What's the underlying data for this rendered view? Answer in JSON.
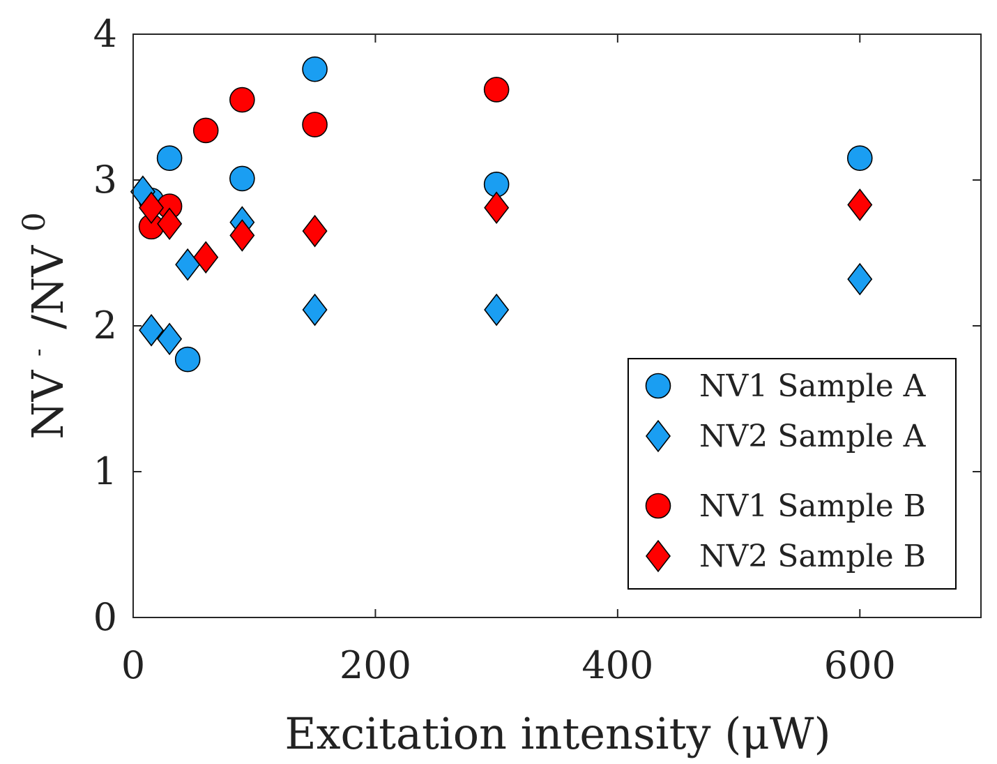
{
  "chart_data": {
    "type": "scatter",
    "title": "",
    "xlabel": "Excitation intensity (μW)",
    "ylabel": {
      "base": "NV",
      "superscript_1": "-",
      "separator": "/NV",
      "superscript_2": "0"
    },
    "xlim": [
      0,
      700
    ],
    "ylim": [
      0,
      4
    ],
    "xticks": [
      0,
      200,
      400,
      600
    ],
    "yticks": [
      0,
      1,
      2,
      3,
      4
    ],
    "xtick_labels": [
      "0",
      "200",
      "400",
      "600"
    ],
    "ytick_labels": [
      "0",
      "1",
      "2",
      "3",
      "4"
    ],
    "grid": false,
    "legend_position": "lower-right",
    "series": [
      {
        "name": "NV1 Sample A",
        "marker": "circle",
        "color": "#1a9ef2",
        "points": [
          {
            "x": 15,
            "y": 2.86
          },
          {
            "x": 30,
            "y": 3.15
          },
          {
            "x": 45,
            "y": 1.77
          },
          {
            "x": 90,
            "y": 3.01
          },
          {
            "x": 150,
            "y": 3.76
          },
          {
            "x": 300,
            "y": 2.97
          },
          {
            "x": 600,
            "y": 3.15
          }
        ]
      },
      {
        "name": "NV2 Sample A",
        "marker": "diamond",
        "color": "#1a9ef2",
        "points": [
          {
            "x": 8,
            "y": 2.92
          },
          {
            "x": 15,
            "y": 1.97
          },
          {
            "x": 30,
            "y": 1.91
          },
          {
            "x": 45,
            "y": 2.42
          },
          {
            "x": 90,
            "y": 2.71
          },
          {
            "x": 150,
            "y": 2.11
          },
          {
            "x": 300,
            "y": 2.11
          },
          {
            "x": 600,
            "y": 2.32
          }
        ]
      },
      {
        "name": "NV1 Sample B",
        "marker": "circle",
        "color": "#ff0000",
        "points": [
          {
            "x": 15,
            "y": 2.68
          },
          {
            "x": 30,
            "y": 2.82
          },
          {
            "x": 60,
            "y": 3.34
          },
          {
            "x": 90,
            "y": 3.55
          },
          {
            "x": 150,
            "y": 3.38
          },
          {
            "x": 300,
            "y": 3.62
          }
        ]
      },
      {
        "name": "NV2 Sample B",
        "marker": "diamond",
        "color": "#ff0000",
        "points": [
          {
            "x": 15,
            "y": 2.81
          },
          {
            "x": 30,
            "y": 2.7
          },
          {
            "x": 60,
            "y": 2.47
          },
          {
            "x": 90,
            "y": 2.62
          },
          {
            "x": 150,
            "y": 2.65
          },
          {
            "x": 300,
            "y": 2.81
          },
          {
            "x": 600,
            "y": 2.83
          }
        ]
      }
    ]
  }
}
